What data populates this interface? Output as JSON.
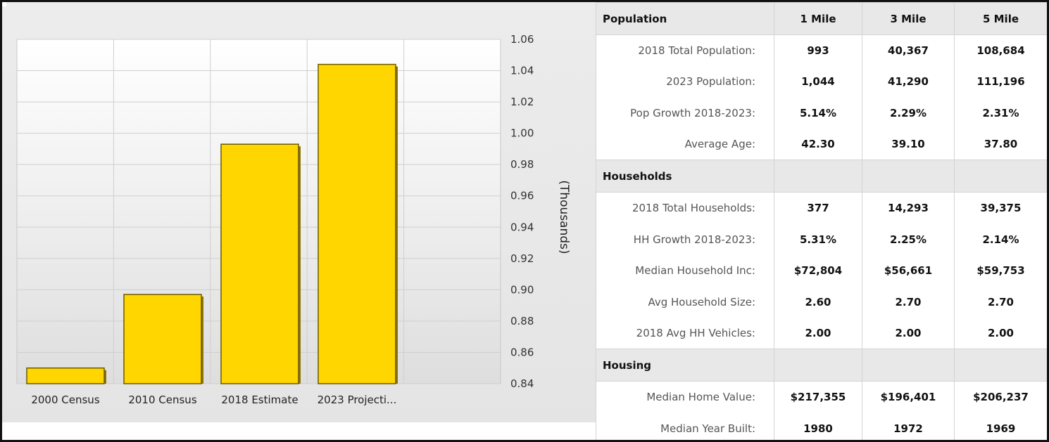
{
  "chart_data": {
    "type": "bar",
    "categories": [
      "2000 Census",
      "2010 Census",
      "2018 Estimate",
      "2023 Projecti..."
    ],
    "values": [
      0.85,
      0.897,
      0.993,
      1.044
    ],
    "ylabel": "(Thousands)",
    "ylim": [
      0.84,
      1.06
    ],
    "yticks": [
      "0.84",
      "0.86",
      "0.88",
      "0.90",
      "0.92",
      "0.94",
      "0.96",
      "0.98",
      "1.00",
      "1.02",
      "1.04",
      "1.06"
    ],
    "grid": true,
    "colors": {
      "bar": "#FFD600",
      "bar_edge": "#6b5a00",
      "grid": "#cfcfcf"
    }
  },
  "table": {
    "headers": [
      "Population",
      "1 Mile",
      "3 Mile",
      "5 Mile"
    ],
    "sections": [
      {
        "title": "",
        "rows": [
          {
            "label": "2018 Total Population:",
            "values": [
              "993",
              "40,367",
              "108,684"
            ]
          },
          {
            "label": "2023 Population:",
            "values": [
              "1,044",
              "41,290",
              "111,196"
            ]
          },
          {
            "label": "Pop Growth 2018-2023:",
            "values": [
              "5.14%",
              "2.29%",
              "2.31%"
            ]
          },
          {
            "label": "Average Age:",
            "values": [
              "42.30",
              "39.10",
              "37.80"
            ]
          }
        ]
      },
      {
        "title": "Households",
        "rows": [
          {
            "label": "2018 Total Households:",
            "values": [
              "377",
              "14,293",
              "39,375"
            ]
          },
          {
            "label": "HH Growth 2018-2023:",
            "values": [
              "5.31%",
              "2.25%",
              "2.14%"
            ]
          },
          {
            "label": "Median Household Inc:",
            "values": [
              "$72,804",
              "$56,661",
              "$59,753"
            ]
          },
          {
            "label": "Avg Household Size:",
            "values": [
              "2.60",
              "2.70",
              "2.70"
            ]
          },
          {
            "label": "2018 Avg HH Vehicles:",
            "values": [
              "2.00",
              "2.00",
              "2.00"
            ]
          }
        ]
      },
      {
        "title": "Housing",
        "rows": [
          {
            "label": "Median Home Value:",
            "values": [
              "$217,355",
              "$196,401",
              "$206,237"
            ]
          },
          {
            "label": "Median Year Built:",
            "values": [
              "1980",
              "1972",
              "1969"
            ]
          }
        ]
      }
    ]
  }
}
